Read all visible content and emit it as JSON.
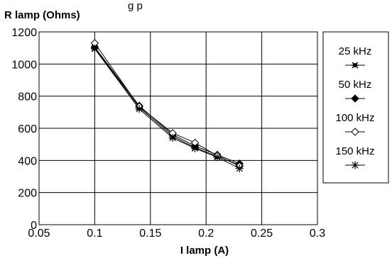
{
  "chart_data": {
    "type": "line",
    "top_text": "g p",
    "ylabel": "R lamp (Ohms)",
    "xlabel": "I lamp (A)",
    "xlim": [
      0.05,
      0.3
    ],
    "ylim": [
      0,
      1200
    ],
    "x_ticks": [
      "0.05",
      "0.1",
      "0.15",
      "0.2",
      "0.25",
      "0.3"
    ],
    "y_ticks": [
      "0",
      "200",
      "400",
      "600",
      "800",
      "1000",
      "1200"
    ],
    "grid": true,
    "legend_position": "right",
    "series": [
      {
        "name": "25 kHz",
        "marker": "star-filled",
        "x": [
          0.1,
          0.14,
          0.17,
          0.19,
          0.21,
          0.23
        ],
        "y": [
          1100,
          730,
          550,
          480,
          425,
          370
        ]
      },
      {
        "name": "50 kHz",
        "marker": "diamond-filled",
        "x": [
          0.1,
          0.14,
          0.17,
          0.19,
          0.21,
          0.23
        ],
        "y": [
          1105,
          740,
          560,
          490,
          435,
          380
        ]
      },
      {
        "name": "100 kHz",
        "marker": "diamond-open",
        "x": [
          0.1,
          0.14,
          0.17,
          0.19,
          0.21,
          0.23
        ],
        "y": [
          1130,
          735,
          570,
          510,
          430,
          365
        ]
      },
      {
        "name": "150 kHz",
        "marker": "asterisk",
        "x": [
          0.1,
          0.14,
          0.17,
          0.19,
          0.21,
          0.23
        ],
        "y": [
          1095,
          720,
          540,
          475,
          420,
          350
        ]
      }
    ]
  }
}
